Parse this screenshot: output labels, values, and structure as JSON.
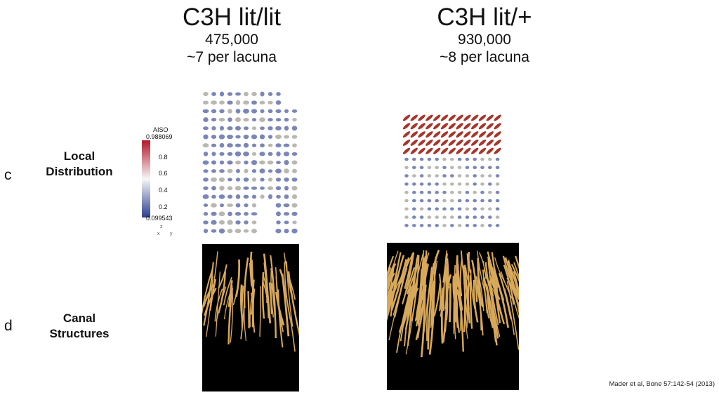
{
  "columns": [
    {
      "title": "C3H lit/lit",
      "count": "475,000",
      "per_lacuna": "~7 per lacuna"
    },
    {
      "title": "C3H lit/+",
      "count": "930,000",
      "per_lacuna": "~8 per lacuna"
    }
  ],
  "rows": [
    {
      "letter": "c",
      "label_line1": "Local",
      "label_line2": "Distribution"
    },
    {
      "letter": "d",
      "label_line1": "Canal",
      "label_line2": "Structures"
    }
  ],
  "scale_bar": {
    "title": "AISO",
    "max": "0.988069",
    "ticks": [
      "0.8",
      "0.6",
      "0.4",
      "0.2"
    ],
    "min": "0.099543",
    "color_high": "#b2182b",
    "color_mid": "#f7f7f7",
    "color_low": "#2c3e8f"
  },
  "axes_glyph": {
    "x": "x",
    "y": "y",
    "z": "z"
  },
  "citation": "Mader et al, Bone 57:142-54 (2013)",
  "colors": {
    "canal": "#d9a95a",
    "ellipsoid_blue": "#7b86b8",
    "ellipsoid_grey": "#b8b8b0",
    "ellipsoid_red": "#a8352b"
  }
}
